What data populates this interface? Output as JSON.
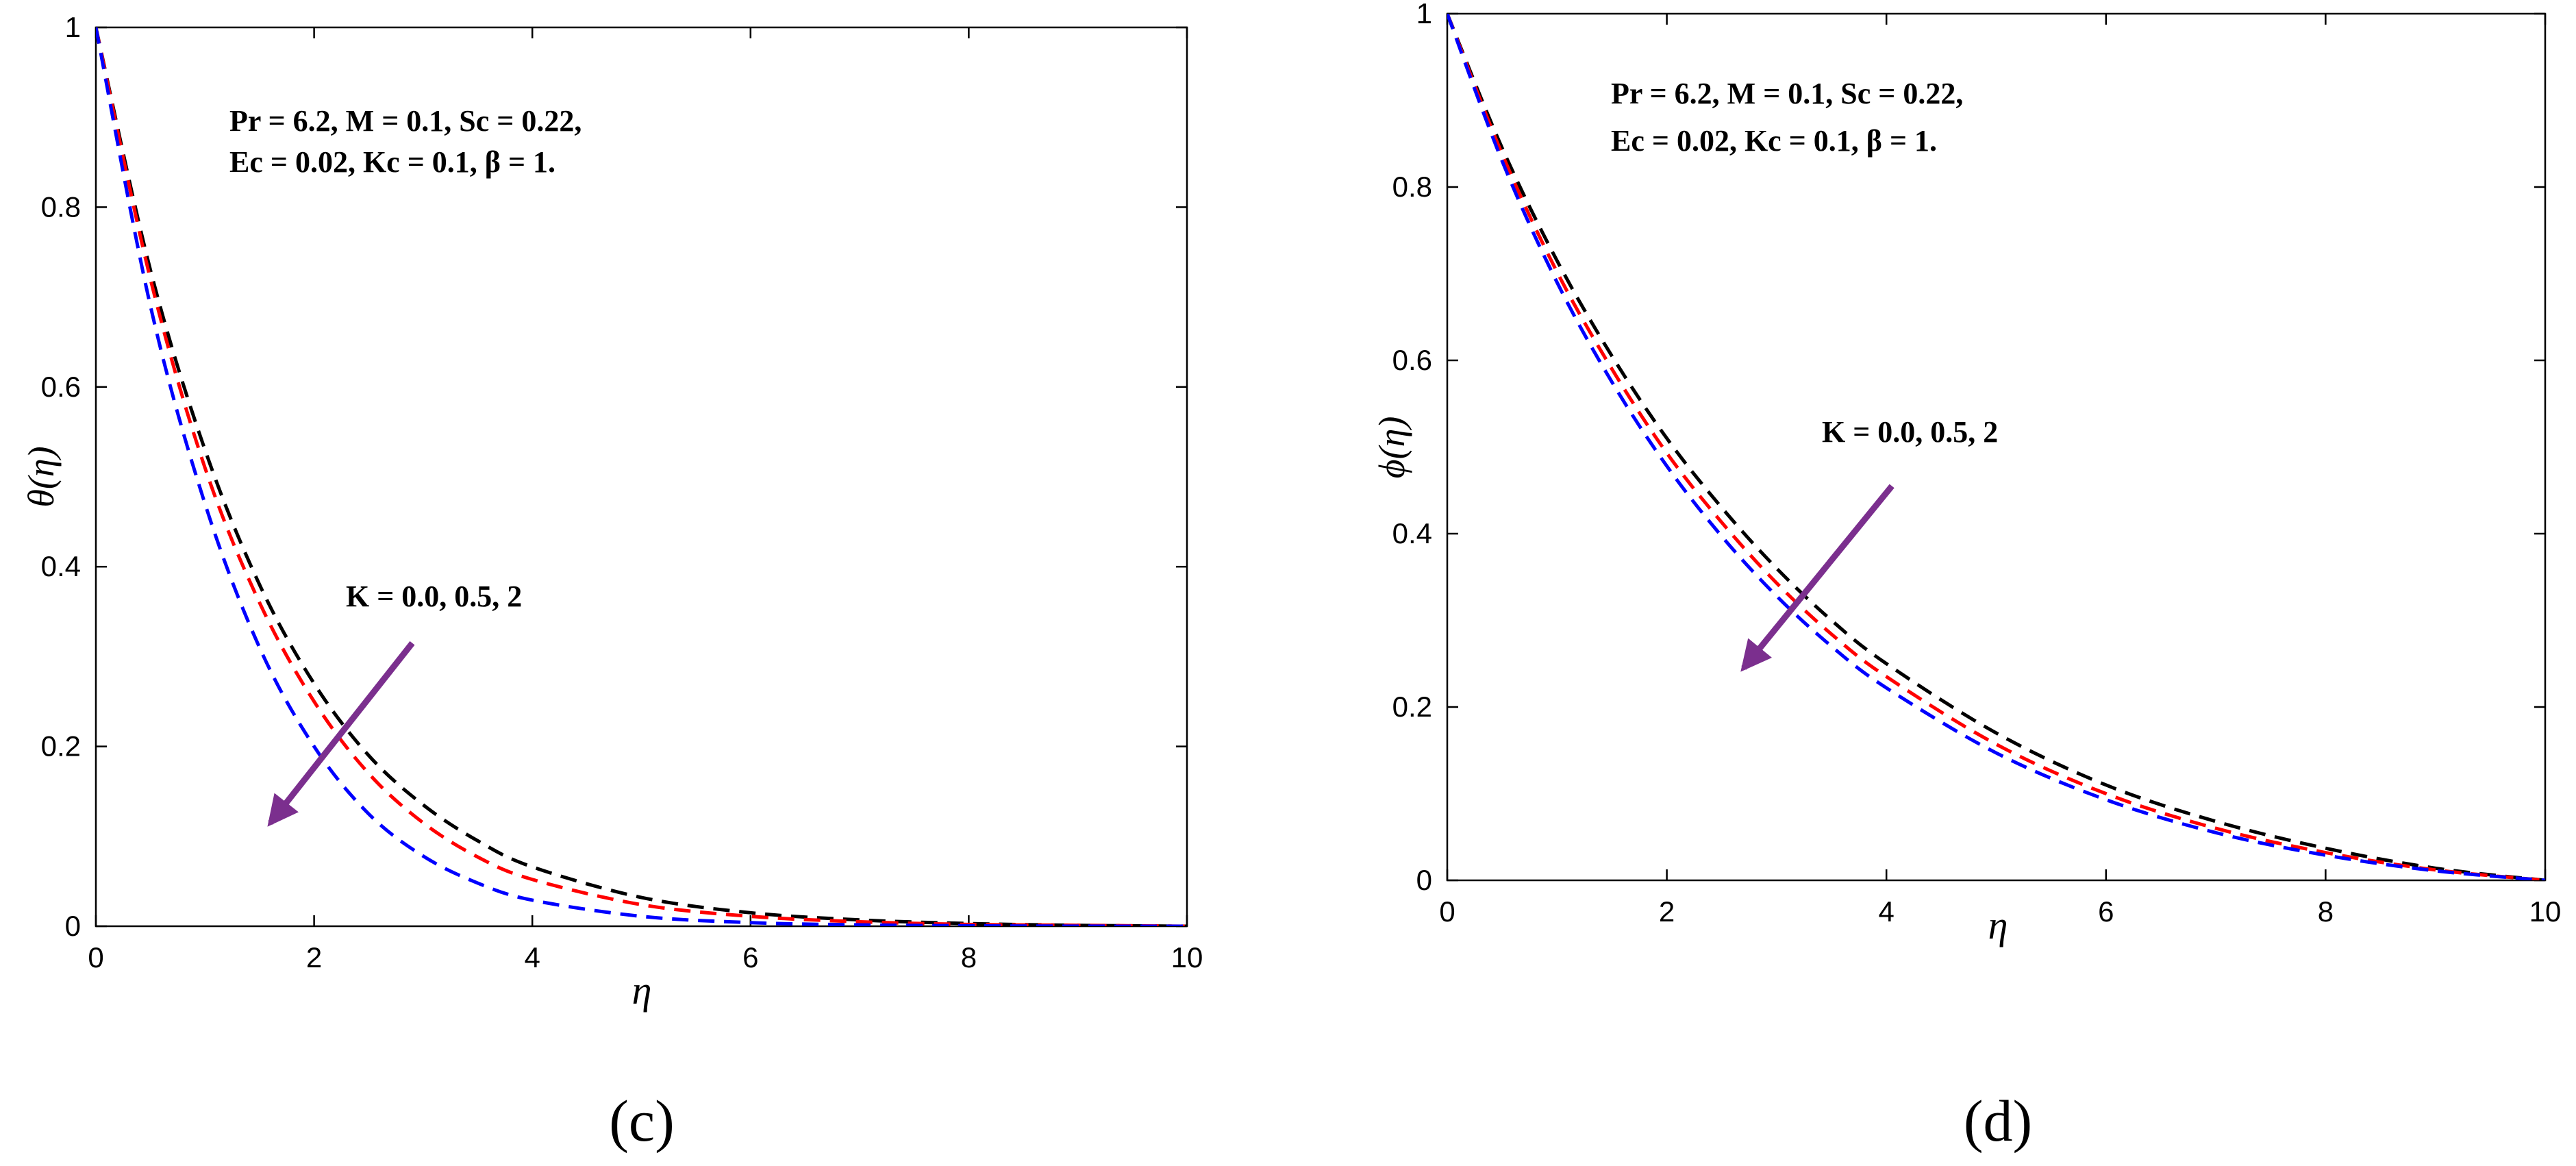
{
  "chart_data": [
    {
      "type": "line",
      "panel_label": "(c)",
      "ylabel": "θ(η)",
      "xlabel": "η",
      "xlim": [
        0,
        10
      ],
      "ylim": [
        0,
        1
      ],
      "x_ticks": [
        "0",
        "2",
        "4",
        "6",
        "8",
        "10"
      ],
      "y_ticks": [
        "0",
        "0.2",
        "0.4",
        "0.6",
        "0.8",
        "1"
      ],
      "annotation_lines": [
        "Pr = 6.2, M = 0.1, Sc = 0.22,",
        "Ec = 0.02, Kc = 0.1, β = 1."
      ],
      "arrow_label": "K = 0.0, 0.5, 2",
      "arrow": {
        "from": [
          2.9,
          0.315
        ],
        "to": [
          1.6,
          0.115
        ]
      },
      "grid": false,
      "series": [
        {
          "color": "#000000",
          "style": "dashed",
          "x": [
            0,
            0.5,
            1,
            1.5,
            2,
            2.5,
            3,
            3.5,
            4,
            5,
            6,
            7,
            8,
            9,
            10
          ],
          "y": [
            1,
            0.73,
            0.53,
            0.38,
            0.27,
            0.19,
            0.135,
            0.095,
            0.066,
            0.032,
            0.015,
            0.007,
            0.003,
            0.001,
            0
          ]
        },
        {
          "color": "#ff0000",
          "style": "dashed",
          "x": [
            0,
            0.5,
            1,
            1.5,
            2,
            2.5,
            3,
            3.5,
            4,
            5,
            6,
            7,
            8,
            9,
            10
          ],
          "y": [
            1,
            0.72,
            0.51,
            0.36,
            0.25,
            0.17,
            0.115,
            0.077,
            0.052,
            0.024,
            0.011,
            0.005,
            0.002,
            0.001,
            0
          ]
        },
        {
          "color": "#0000ff",
          "style": "dashed",
          "x": [
            0,
            0.5,
            1,
            1.5,
            2,
            2.5,
            3,
            3.5,
            4,
            5,
            6,
            7,
            8,
            9,
            10
          ],
          "y": [
            1,
            0.69,
            0.47,
            0.31,
            0.2,
            0.125,
            0.078,
            0.048,
            0.029,
            0.011,
            0.004,
            0.0015,
            0.0005,
            0.0001,
            0
          ]
        }
      ]
    },
    {
      "type": "line",
      "panel_label": "(d)",
      "ylabel": "ϕ(η)",
      "xlabel": "η",
      "xlim": [
        0,
        10
      ],
      "ylim": [
        0,
        1
      ],
      "x_ticks": [
        "0",
        "2",
        "4",
        "6",
        "8",
        "10"
      ],
      "y_ticks": [
        "0",
        "0.2",
        "0.4",
        "0.6",
        "0.8",
        "1"
      ],
      "annotation_lines": [
        "Pr = 6.2, M = 0.1, Sc = 0.22,",
        "Ec = 0.02, Kc = 0.1, β = 1."
      ],
      "arrow_label": "K = 0.0, 0.5, 2",
      "arrow": {
        "from": [
          4.05,
          0.455
        ],
        "to": [
          2.7,
          0.245
        ]
      },
      "grid": false,
      "series": [
        {
          "color": "#000000",
          "style": "dashed",
          "x": [
            0,
            0.5,
            1,
            1.5,
            2,
            2.5,
            3,
            3.5,
            4,
            5,
            6,
            7,
            8,
            9,
            10
          ],
          "y": [
            1,
            0.845,
            0.715,
            0.605,
            0.51,
            0.43,
            0.36,
            0.3,
            0.25,
            0.17,
            0.11,
            0.068,
            0.037,
            0.014,
            0
          ]
        },
        {
          "color": "#ff0000",
          "style": "dashed",
          "x": [
            0,
            0.5,
            1,
            1.5,
            2,
            2.5,
            3,
            3.5,
            4,
            5,
            6,
            7,
            8,
            9,
            10
          ],
          "y": [
            1,
            0.838,
            0.702,
            0.59,
            0.493,
            0.413,
            0.343,
            0.284,
            0.235,
            0.157,
            0.1,
            0.06,
            0.032,
            0.012,
            0
          ]
        },
        {
          "color": "#0000ff",
          "style": "dashed",
          "x": [
            0,
            0.5,
            1,
            1.5,
            2,
            2.5,
            3,
            3.5,
            4,
            5,
            6,
            7,
            8,
            9,
            10
          ],
          "y": [
            1,
            0.83,
            0.69,
            0.575,
            0.478,
            0.397,
            0.328,
            0.27,
            0.222,
            0.147,
            0.093,
            0.055,
            0.029,
            0.011,
            0
          ]
        }
      ]
    }
  ]
}
